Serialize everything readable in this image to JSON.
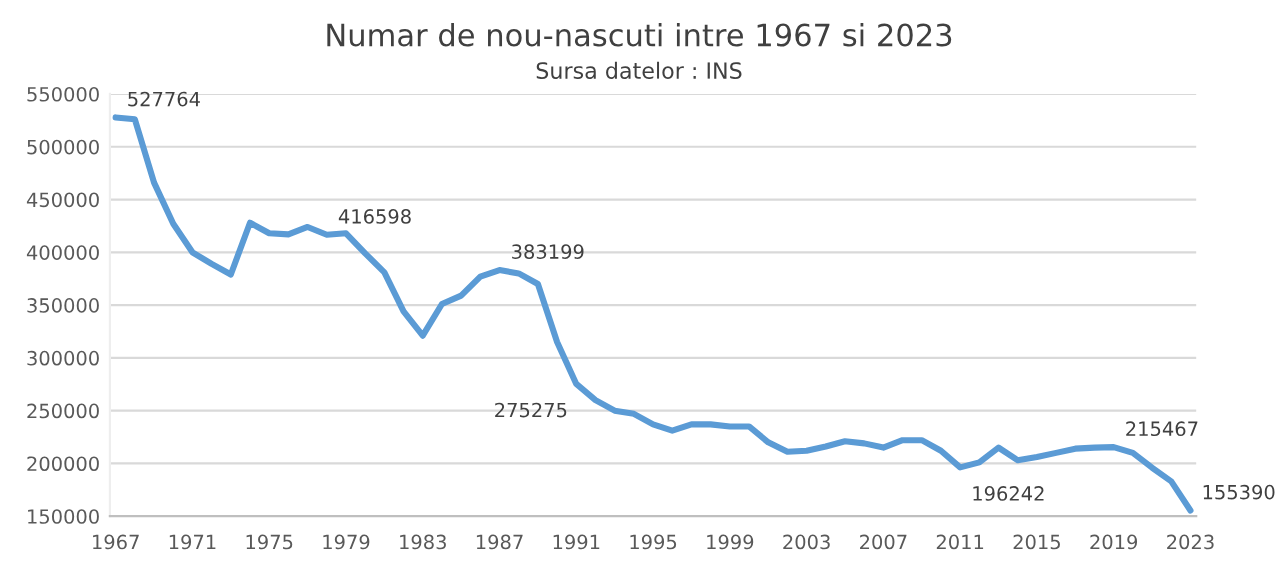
{
  "chart_data": {
    "type": "line",
    "title": "Numar de nou-nascuti intre 1967 si 2023",
    "subtitle": "Sursa datelor : INS",
    "x": [
      1967,
      1968,
      1969,
      1970,
      1971,
      1972,
      1973,
      1974,
      1975,
      1976,
      1977,
      1978,
      1979,
      1980,
      1981,
      1982,
      1983,
      1984,
      1985,
      1986,
      1987,
      1988,
      1989,
      1990,
      1991,
      1992,
      1993,
      1994,
      1995,
      1996,
      1997,
      1998,
      1999,
      2000,
      2001,
      2002,
      2003,
      2004,
      2005,
      2006,
      2007,
      2008,
      2009,
      2010,
      2011,
      2012,
      2013,
      2014,
      2015,
      2016,
      2017,
      2018,
      2019,
      2020,
      2021,
      2022,
      2023
    ],
    "series": [
      {
        "color": "#5b9bd5",
        "values": [
          527764,
          526000,
          466000,
          427000,
          400000,
          389000,
          379000,
          428000,
          418000,
          417000,
          424000,
          416598,
          418000,
          399000,
          381000,
          344000,
          321000,
          351000,
          359000,
          377000,
          383199,
          380000,
          370000,
          315000,
          275275,
          260000,
          250000,
          247000,
          237000,
          231000,
          237000,
          237000,
          235000,
          235000,
          220000,
          211000,
          212000,
          216000,
          221000,
          219000,
          215000,
          222000,
          222000,
          212000,
          196242,
          201000,
          215000,
          203000,
          206000,
          210000,
          214000,
          215000,
          215467,
          210000,
          196000,
          183000,
          155390
        ]
      }
    ],
    "annotations": [
      {
        "text": "527764",
        "x": 1967,
        "y": 527764
      },
      {
        "text": "416598",
        "x": 1978,
        "y": 416598
      },
      {
        "text": "383199",
        "x": 1987,
        "y": 383199
      },
      {
        "text": "275275",
        "x": 1991,
        "y": 275275
      },
      {
        "text": "196242",
        "x": 2011,
        "y": 196242
      },
      {
        "text": "215467",
        "x": 2019,
        "y": 215467
      },
      {
        "text": "155390",
        "x": 2023,
        "y": 155390
      }
    ],
    "xlim": [
      1966.7,
      2023.3
    ],
    "xticks": [
      1967,
      1971,
      1975,
      1979,
      1983,
      1987,
      1991,
      1995,
      1999,
      2003,
      2007,
      2011,
      2015,
      2019,
      2023
    ],
    "ylim": [
      150000,
      550000
    ],
    "yticks": [
      150000,
      200000,
      250000,
      300000,
      350000,
      400000,
      450000,
      500000,
      550000
    ],
    "grid": "y",
    "legend": false,
    "marker": "none",
    "line_style": "solid"
  }
}
